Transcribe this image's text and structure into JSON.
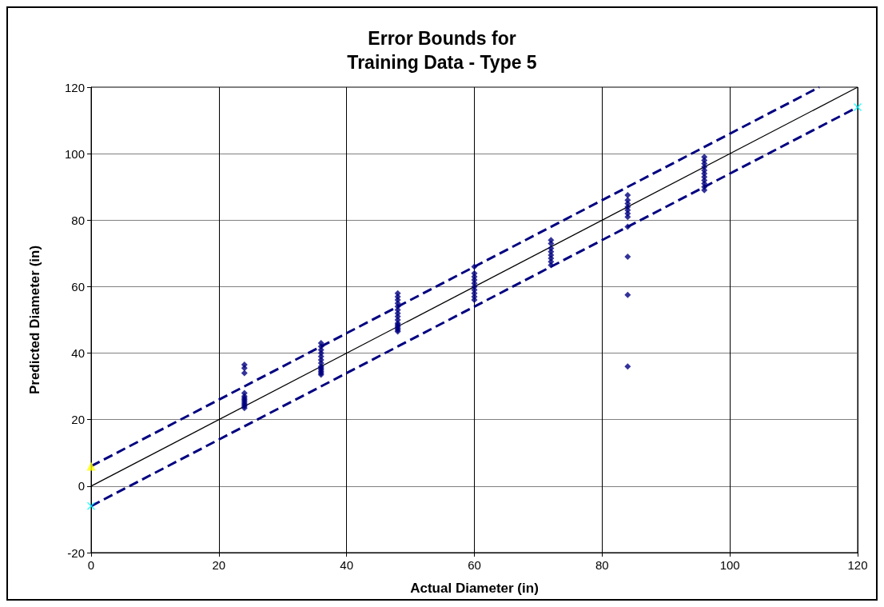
{
  "chart_data": {
    "type": "scatter",
    "title": "Error Bounds for\nTraining Data - Type 5",
    "xlabel": "Actual Diameter (in)",
    "ylabel": "Predicted Diameter (in)",
    "xlim": [
      0,
      120
    ],
    "xticks": [
      0,
      20,
      40,
      60,
      80,
      100,
      120
    ],
    "ylim": [
      -20,
      120
    ],
    "yticks": [
      -20,
      0,
      20,
      40,
      60,
      80,
      100,
      120
    ],
    "grid": true,
    "series": [
      {
        "marker": "diamond",
        "color": "#000080",
        "x": [
          24,
          24,
          24,
          24,
          24,
          24,
          24,
          24,
          24,
          24,
          24,
          24,
          36,
          36,
          36,
          36,
          36,
          36,
          36,
          36,
          36,
          36,
          36,
          36,
          36,
          48,
          48,
          48,
          48,
          48,
          48,
          48,
          48,
          48,
          48,
          48,
          48,
          48,
          48,
          48,
          60,
          60,
          60,
          60,
          60,
          60,
          60,
          60,
          60,
          60,
          72,
          72,
          72,
          72,
          72,
          72,
          72,
          72,
          84,
          84,
          84,
          84,
          84,
          84,
          84,
          84,
          84,
          84,
          84,
          96,
          96,
          96,
          96,
          96,
          96,
          96,
          96,
          96,
          96,
          96
        ],
        "values": [
          23.5,
          24,
          24.5,
          25,
          25.5,
          26,
          26.5,
          27,
          28,
          34,
          35.5,
          36.5,
          33.5,
          34,
          34.5,
          35,
          35.5,
          36,
          37,
          38,
          39,
          40,
          41,
          42,
          43,
          46.5,
          47,
          47.5,
          48,
          48.5,
          49,
          50,
          51,
          52,
          53,
          54,
          55,
          56,
          57,
          58,
          56,
          57,
          58,
          59,
          60,
          61,
          62,
          63,
          64,
          66,
          66.5,
          67.5,
          68.5,
          69.5,
          70.5,
          71.5,
          73,
          74,
          36,
          57.5,
          69,
          78,
          81,
          82,
          83,
          84,
          85,
          86,
          87.5,
          89,
          90,
          91,
          92,
          93,
          94,
          95,
          96,
          97,
          98,
          99
        ]
      },
      {
        "type": "line",
        "marker": "none",
        "line_style": "solid",
        "color": "#000000",
        "x": [
          0,
          120
        ],
        "values": [
          0,
          120
        ]
      },
      {
        "type": "line",
        "marker": "none",
        "line_style": "dashed",
        "color": "#000080",
        "x": [
          0,
          114
        ],
        "values": [
          6,
          120
        ]
      },
      {
        "type": "line",
        "marker": "none",
        "line_style": "dashed",
        "color": "#000080",
        "x": [
          0,
          120
        ],
        "values": [
          -6,
          114
        ]
      },
      {
        "marker": "triangle",
        "color": "#ffff00",
        "x": [
          0
        ],
        "values": [
          6
        ]
      },
      {
        "marker": "cross",
        "color": "#00ffff",
        "x": [
          0,
          120
        ],
        "values": [
          -6,
          114
        ]
      }
    ]
  }
}
